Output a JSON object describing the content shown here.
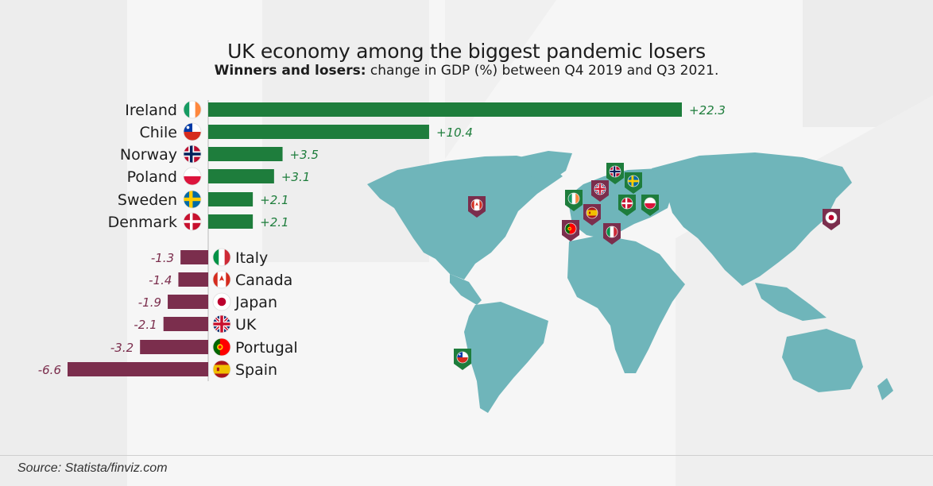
{
  "title": "UK economy among the biggest pandemic losers",
  "subtitle_bold": "Winners and losers:",
  "subtitle_rest": "change in GDP (%) between Q4 2019 and Q3 2021.",
  "source": "Source: Statista/finviz.com",
  "colors": {
    "positive": "#1e7d3c",
    "negative": "#7b2e4d",
    "map_land": "#6fb5ba",
    "background": "#f6f6f6"
  },
  "chart_data": {
    "type": "bar",
    "orientation": "horizontal",
    "title": "UK economy among the biggest pandemic losers",
    "subtitle": "Winners and losers: change in GDP (%) between Q4 2019 and Q3 2021.",
    "categories": [
      "Ireland",
      "Chile",
      "Norway",
      "Poland",
      "Sweden",
      "Denmark",
      "Italy",
      "Canada",
      "Japan",
      "UK",
      "Portugal",
      "Spain"
    ],
    "values": [
      22.3,
      10.4,
      3.5,
      3.1,
      2.1,
      2.1,
      -1.3,
      -1.4,
      -1.9,
      -2.1,
      -3.2,
      -6.6
    ],
    "value_labels": [
      "+22.3",
      "+10.4",
      "+3.5",
      "+3.1",
      "+2.1",
      "+2.1",
      "-1.3",
      "-1.4",
      "-1.9",
      "-2.1",
      "-3.2",
      "-6.6"
    ],
    "flags": [
      "ireland-flag-icon",
      "chile-flag-icon",
      "norway-flag-icon",
      "poland-flag-icon",
      "sweden-flag-icon",
      "denmark-flag-icon",
      "italy-flag-icon",
      "canada-flag-icon",
      "japan-flag-icon",
      "uk-flag-icon",
      "portugal-flag-icon",
      "spain-flag-icon"
    ],
    "legend": "none",
    "grid": false
  },
  "map": {
    "markers": [
      "canada-marker",
      "ireland-marker",
      "uk-marker",
      "norway-marker",
      "sweden-marker",
      "denmark-marker",
      "poland-marker",
      "spain-marker",
      "portugal-marker",
      "italy-marker",
      "japan-marker",
      "chile-marker"
    ]
  }
}
